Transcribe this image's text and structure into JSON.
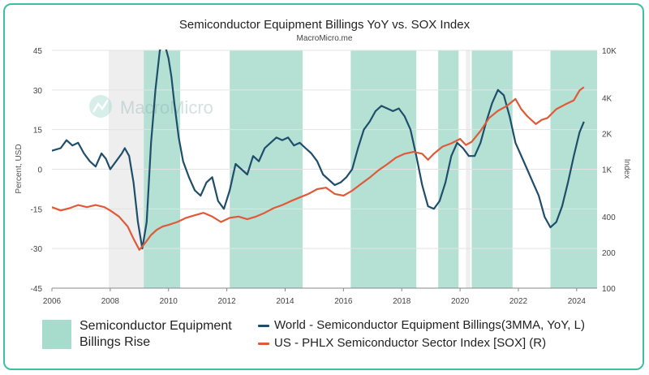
{
  "chart_data": {
    "type": "line",
    "title": "Semiconductor Equipment Billings YoY vs. SOX Index",
    "subtitle": "MacroMicro.me",
    "watermark": "MacroMicro",
    "ylabel_left": "Percent, USD",
    "ylabel_right": "Index",
    "y_left_range": [
      -45,
      45
    ],
    "y_left_ticks": [
      "45",
      "30",
      "15",
      "0",
      "-15",
      "-30",
      "-45"
    ],
    "y_left_tick_values": [
      45,
      30,
      15,
      0,
      -15,
      -30,
      -45
    ],
    "y_right_range_log": [
      100,
      10000
    ],
    "y_right_ticks": [
      "10K",
      "4K",
      "2K",
      "1K",
      "400",
      "200",
      "100"
    ],
    "y_right_tick_values": [
      10000,
      4000,
      2000,
      1000,
      400,
      200,
      100
    ],
    "x_range": [
      2006,
      2024.7
    ],
    "x_ticks": [
      "2006",
      "2008",
      "2010",
      "2012",
      "2014",
      "2016",
      "2018",
      "2020",
      "2022",
      "2024"
    ],
    "x_tick_values": [
      2006,
      2008,
      2010,
      2012,
      2014,
      2016,
      2018,
      2020,
      2022,
      2024
    ],
    "shaded_rise": [
      [
        2009.15,
        2010.4
      ],
      [
        2012.1,
        2014.6
      ],
      [
        2016.25,
        2018.5
      ],
      [
        2019.25,
        2019.95
      ],
      [
        2020.4,
        2021.8
      ],
      [
        2023.1,
        2024.7
      ]
    ],
    "shaded_gray": [
      [
        2007.95,
        2009.15
      ],
      [
        2020.2,
        2020.35
      ]
    ],
    "series": [
      {
        "name": "World - Semiconductor Equipment Billings(3MMA, YoY, L)",
        "color": "#1f4e6b",
        "axis": "left",
        "x": [
          2006.0,
          2006.3,
          2006.5,
          2006.7,
          2006.9,
          2007.1,
          2007.3,
          2007.5,
          2007.7,
          2007.85,
          2008.0,
          2008.2,
          2008.4,
          2008.5,
          2008.65,
          2008.8,
          2008.95,
          2009.1,
          2009.25,
          2009.4,
          2009.55,
          2009.7,
          2009.85,
          2010.0,
          2010.1,
          2010.2,
          2010.35,
          2010.5,
          2010.7,
          2010.9,
          2011.1,
          2011.3,
          2011.5,
          2011.7,
          2011.9,
          2012.1,
          2012.3,
          2012.5,
          2012.7,
          2012.9,
          2013.1,
          2013.3,
          2013.5,
          2013.7,
          2013.9,
          2014.1,
          2014.3,
          2014.5,
          2014.7,
          2014.9,
          2015.1,
          2015.3,
          2015.5,
          2015.7,
          2015.9,
          2016.1,
          2016.3,
          2016.5,
          2016.7,
          2016.9,
          2017.1,
          2017.3,
          2017.5,
          2017.7,
          2017.9,
          2018.1,
          2018.3,
          2018.5,
          2018.7,
          2018.9,
          2019.1,
          2019.3,
          2019.5,
          2019.7,
          2019.9,
          2020.1,
          2020.3,
          2020.5,
          2020.7,
          2020.9,
          2021.1,
          2021.3,
          2021.5,
          2021.7,
          2021.9,
          2022.1,
          2022.3,
          2022.5,
          2022.7,
          2022.9,
          2023.1,
          2023.3,
          2023.5,
          2023.7,
          2023.9,
          2024.1,
          2024.25
        ],
        "values": [
          7,
          8,
          11,
          9,
          10,
          6,
          3,
          1,
          6,
          4,
          0,
          3,
          6,
          8,
          5,
          -5,
          -20,
          -30,
          -20,
          10,
          30,
          45,
          48,
          42,
          35,
          25,
          12,
          3,
          -3,
          -8,
          -10,
          -5,
          -3,
          -12,
          -15,
          -8,
          2,
          0,
          -2,
          5,
          3,
          8,
          10,
          12,
          11,
          12,
          9,
          10,
          8,
          6,
          3,
          -2,
          -4,
          -6,
          -5,
          -3,
          0,
          8,
          15,
          18,
          22,
          24,
          23,
          22,
          23,
          20,
          15,
          5,
          -6,
          -14,
          -15,
          -12,
          -5,
          5,
          10,
          8,
          5,
          5,
          10,
          18,
          25,
          30,
          28,
          20,
          10,
          5,
          0,
          -5,
          -10,
          -18,
          -22,
          -20,
          -14,
          -5,
          5,
          14,
          18
        ]
      },
      {
        "name": "US - PHLX Semiconductor Sector Index [SOX] (R)",
        "color": "#e05a3a",
        "axis": "right",
        "x": [
          2006.0,
          2006.3,
          2006.6,
          2006.9,
          2007.2,
          2007.5,
          2007.8,
          2008.0,
          2008.3,
          2008.6,
          2008.8,
          2009.0,
          2009.2,
          2009.4,
          2009.6,
          2009.8,
          2010.0,
          2010.3,
          2010.6,
          2010.9,
          2011.2,
          2011.5,
          2011.8,
          2012.1,
          2012.4,
          2012.7,
          2013.0,
          2013.3,
          2013.6,
          2013.9,
          2014.2,
          2014.5,
          2014.8,
          2015.1,
          2015.4,
          2015.7,
          2016.0,
          2016.3,
          2016.6,
          2016.9,
          2017.2,
          2017.5,
          2017.8,
          2018.1,
          2018.4,
          2018.7,
          2018.9,
          2019.1,
          2019.4,
          2019.7,
          2020.0,
          2020.2,
          2020.4,
          2020.7,
          2021.0,
          2021.3,
          2021.6,
          2021.9,
          2022.1,
          2022.3,
          2022.6,
          2022.8,
          2023.0,
          2023.3,
          2023.6,
          2023.9,
          2024.1,
          2024.25
        ],
        "values": [
          480,
          450,
          470,
          500,
          480,
          500,
          480,
          450,
          400,
          330,
          260,
          210,
          240,
          280,
          310,
          330,
          340,
          360,
          390,
          410,
          430,
          400,
          360,
          390,
          400,
          380,
          400,
          430,
          470,
          500,
          540,
          580,
          620,
          680,
          700,
          620,
          600,
          660,
          750,
          850,
          980,
          1100,
          1250,
          1350,
          1400,
          1350,
          1200,
          1350,
          1550,
          1650,
          1800,
          1600,
          1700,
          2100,
          2700,
          3100,
          3400,
          3900,
          3200,
          2800,
          2400,
          2600,
          2700,
          3200,
          3500,
          3800,
          4600,
          4900
        ]
      }
    ],
    "legend": {
      "box_label": "Semiconductor Equipment Billings Rise",
      "lines": [
        "World - Semiconductor Equipment Billings(3MMA, YoY, L)",
        "US - PHLX Semiconductor Sector Index [SOX] (R)"
      ]
    }
  }
}
